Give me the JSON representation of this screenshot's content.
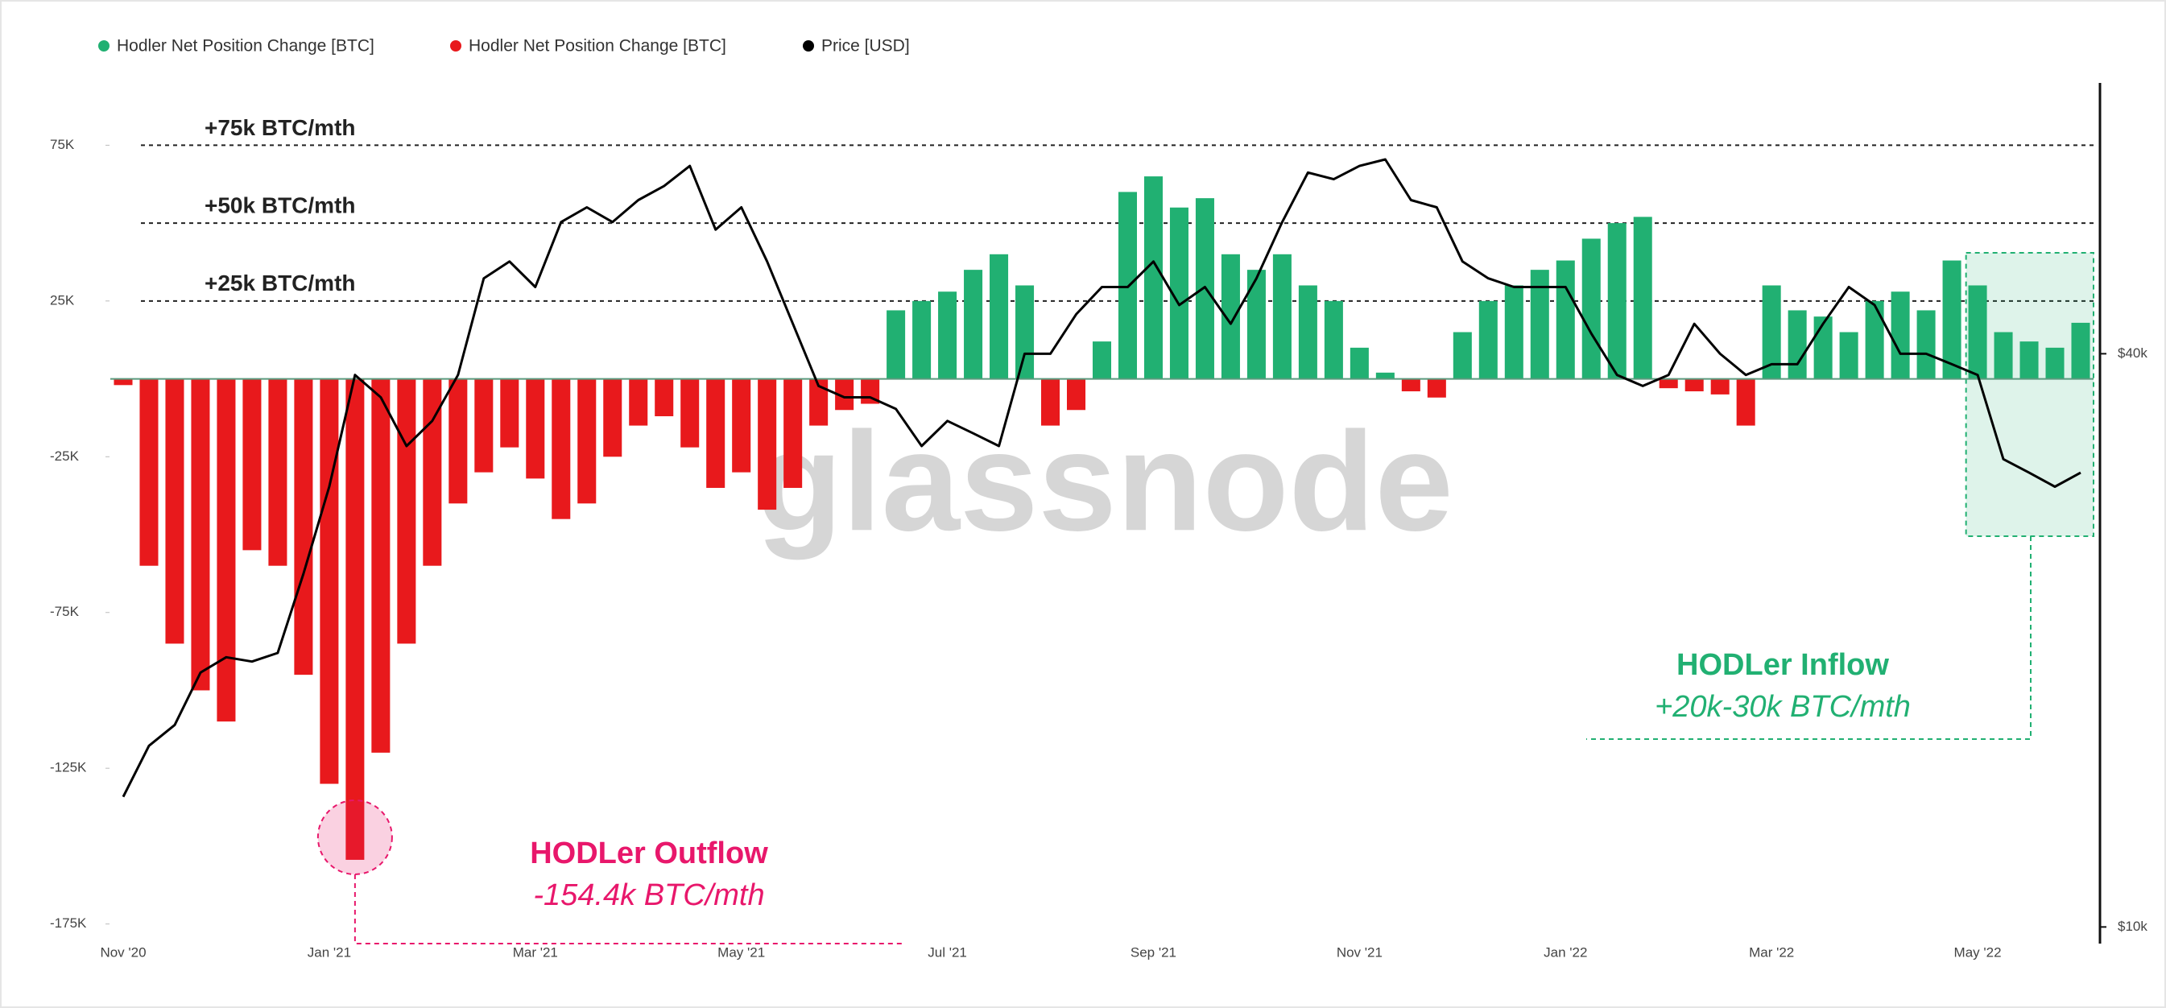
{
  "chart_data": {
    "type": "bar",
    "watermark": "glassnode",
    "categories": [
      "Nov '20",
      null,
      null,
      null,
      null,
      null,
      null,
      null,
      "Jan '21",
      null,
      null,
      null,
      null,
      null,
      null,
      null,
      "Mar '21",
      null,
      null,
      null,
      null,
      null,
      null,
      null,
      "May '21",
      null,
      null,
      null,
      null,
      null,
      null,
      null,
      "Jul '21",
      null,
      null,
      null,
      null,
      null,
      null,
      null,
      "Sep '21",
      null,
      null,
      null,
      null,
      null,
      null,
      null,
      "Nov '21",
      null,
      null,
      null,
      null,
      null,
      null,
      null,
      "Jan '22",
      null,
      null,
      null,
      null,
      null,
      null,
      null,
      "Mar '22",
      null,
      null,
      null,
      null,
      null,
      null,
      null,
      "May '22",
      null,
      null,
      null,
      null
    ],
    "series": [
      {
        "name": "Hodler Net Position Change [BTC]",
        "color": "#21b072",
        "values": [
          null,
          null,
          null,
          null,
          null,
          null,
          null,
          null,
          null,
          null,
          null,
          null,
          null,
          null,
          null,
          null,
          null,
          null,
          null,
          null,
          null,
          null,
          null,
          null,
          null,
          null,
          null,
          null,
          null,
          null,
          22000,
          25000,
          28000,
          35000,
          40000,
          30000,
          null,
          null,
          12000,
          60000,
          65000,
          55000,
          58000,
          40000,
          35000,
          40000,
          30000,
          25000,
          10000,
          2000,
          null,
          null,
          15000,
          25000,
          30000,
          35000,
          38000,
          45000,
          50000,
          52000,
          null,
          null,
          null,
          null,
          30000,
          22000,
          20000,
          15000,
          25000,
          28000,
          22000,
          38000,
          30000,
          15000,
          12000,
          10000,
          18000
        ]
      },
      {
        "name": "Hodler Net Position Change [BTC]",
        "color": "#e8191c",
        "values": [
          -2000,
          -60000,
          -85000,
          -100000,
          -110000,
          -55000,
          -60000,
          -95000,
          -130000,
          -154400,
          -120000,
          -85000,
          -60000,
          -40000,
          -30000,
          -22000,
          -32000,
          -45000,
          -40000,
          -25000,
          -15000,
          -12000,
          -22000,
          -35000,
          -30000,
          -42000,
          -35000,
          -15000,
          -10000,
          -8000,
          null,
          null,
          null,
          null,
          null,
          null,
          -15000,
          -10000,
          null,
          null,
          null,
          null,
          null,
          null,
          null,
          null,
          null,
          null,
          null,
          null,
          -4000,
          -6000,
          null,
          null,
          null,
          null,
          null,
          null,
          null,
          null,
          -3000,
          -4000,
          -5000,
          -15000,
          null,
          null,
          null,
          null,
          null,
          null,
          null,
          null,
          null,
          null,
          null,
          null,
          null
        ]
      },
      {
        "name": "Price [USD]",
        "color": "#000000",
        "axis": "y2",
        "values": [
          13700,
          15500,
          16300,
          18500,
          19200,
          19000,
          19400,
          23500,
          29000,
          38000,
          36000,
          32000,
          34000,
          38000,
          48000,
          50000,
          47000,
          55000,
          57000,
          55000,
          58000,
          60000,
          63000,
          54000,
          57000,
          50000,
          43000,
          37000,
          36000,
          36000,
          35000,
          32000,
          34000,
          33000,
          32000,
          40000,
          40000,
          44000,
          47000,
          47000,
          50000,
          45000,
          47000,
          43000,
          48000,
          55000,
          62000,
          61000,
          63000,
          64000,
          58000,
          57000,
          50000,
          48000,
          47000,
          47000,
          47000,
          42000,
          38000,
          37000,
          38000,
          43000,
          40000,
          38000,
          39000,
          39000,
          43000,
          47000,
          45000,
          40000,
          40000,
          39000,
          38000,
          31000,
          30000,
          29000,
          30000
        ]
      }
    ],
    "ylim": [
      -180000,
      95000
    ],
    "yticks": [
      {
        "value": 75000,
        "label": "75K"
      },
      {
        "value": 25000,
        "label": "25K"
      },
      {
        "value": -25000,
        "label": "-25K"
      },
      {
        "value": -75000,
        "label": "-75K"
      },
      {
        "value": -125000,
        "label": "-125K"
      },
      {
        "value": -175000,
        "label": "-175K"
      }
    ],
    "y2lim": [
      9700,
      77000
    ],
    "y2ticks": [
      {
        "value": 40000,
        "label": "$40k"
      },
      {
        "value": 10000,
        "label": "$10k"
      }
    ],
    "y2log": true,
    "grid": false,
    "legend": "top-left",
    "reference_lines": [
      {
        "value": 75000,
        "label": "+75k BTC/mth"
      },
      {
        "value": 50000,
        "label": "+50k BTC/mth"
      },
      {
        "value": 25000,
        "label": "+25k BTC/mth"
      }
    ],
    "annotations": [
      {
        "title": "HODLer Outflow",
        "text": "-154.4k  BTC/mth",
        "color": "#e8176b"
      },
      {
        "title": "HODLer Inflow",
        "text": "+20k-30k BTC/mth",
        "color": "#21b072"
      }
    ]
  }
}
